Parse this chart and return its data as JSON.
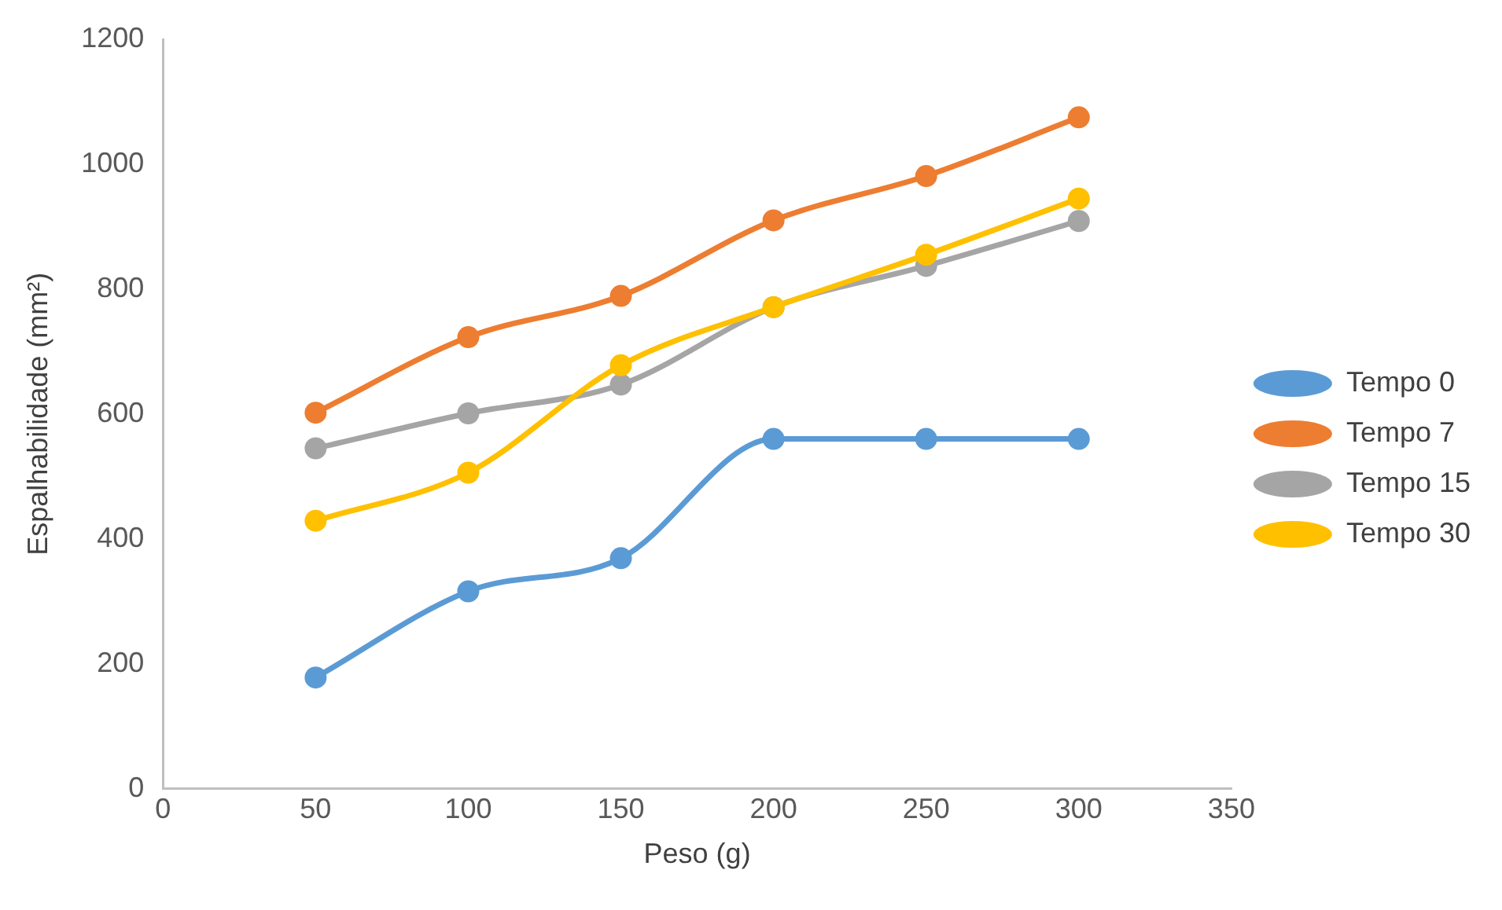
{
  "chart_data": {
    "type": "line",
    "xlabel": "Peso (g)",
    "ylabel": "Espalhabilidade (mm²)",
    "x": [
      50,
      100,
      150,
      200,
      250,
      300
    ],
    "xlim": [
      0,
      350
    ],
    "xticks": [
      0,
      50,
      100,
      150,
      200,
      250,
      300,
      350
    ],
    "ylim": [
      0,
      1200
    ],
    "yticks": [
      0,
      200,
      400,
      600,
      800,
      1000,
      1200
    ],
    "grid": false,
    "legend": "right",
    "marker": "circle",
    "line_style": "solid",
    "series": [
      {
        "name": "Tempo 0",
        "color": "#5b9bd5",
        "values": [
          178,
          316,
          369,
          560,
          560,
          560
        ]
      },
      {
        "name": "Tempo 7",
        "color": "#ed7d31",
        "values": [
          602,
          723,
          789,
          910,
          981,
          1075
        ]
      },
      {
        "name": "Tempo 15",
        "color": "#a5a5a5",
        "values": [
          545,
          601,
          647,
          771,
          837,
          909
        ]
      },
      {
        "name": "Tempo 30",
        "color": "#ffc000",
        "values": [
          429,
          506,
          678,
          771,
          855,
          945
        ]
      }
    ]
  }
}
